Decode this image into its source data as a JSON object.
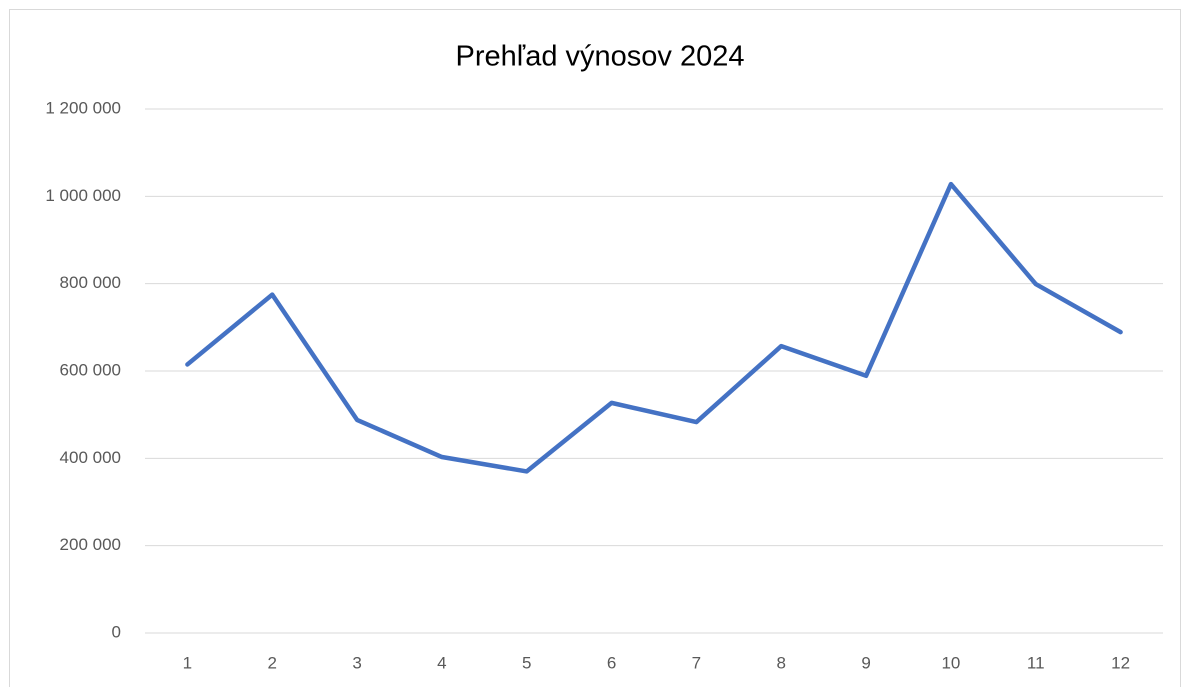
{
  "chart_data": {
    "type": "line",
    "title": "Prehľad výnosov 2024",
    "categories": [
      "1",
      "2",
      "3",
      "4",
      "5",
      "6",
      "7",
      "8",
      "9",
      "10",
      "11",
      "12"
    ],
    "series": [
      {
        "color": "#4472c4",
        "values": [
          615000,
          775000,
          488000,
          403000,
          370000,
          527000,
          483000,
          657000,
          589000,
          1028000,
          799000,
          689000
        ]
      }
    ],
    "ylim": [
      0,
      1200000
    ],
    "yticks": [
      0,
      {
        "value": 200000,
        "label": "200 000"
      },
      {
        "value": 400000,
        "label": "400 000"
      },
      {
        "value": 600000,
        "label": "600 000"
      },
      {
        "value": 800000,
        "label": "800 000"
      },
      {
        "value": 1000000,
        "label": "1 000 000"
      },
      {
        "value": 1200000,
        "label": "1 200 000"
      }
    ],
    "grid": true
  }
}
